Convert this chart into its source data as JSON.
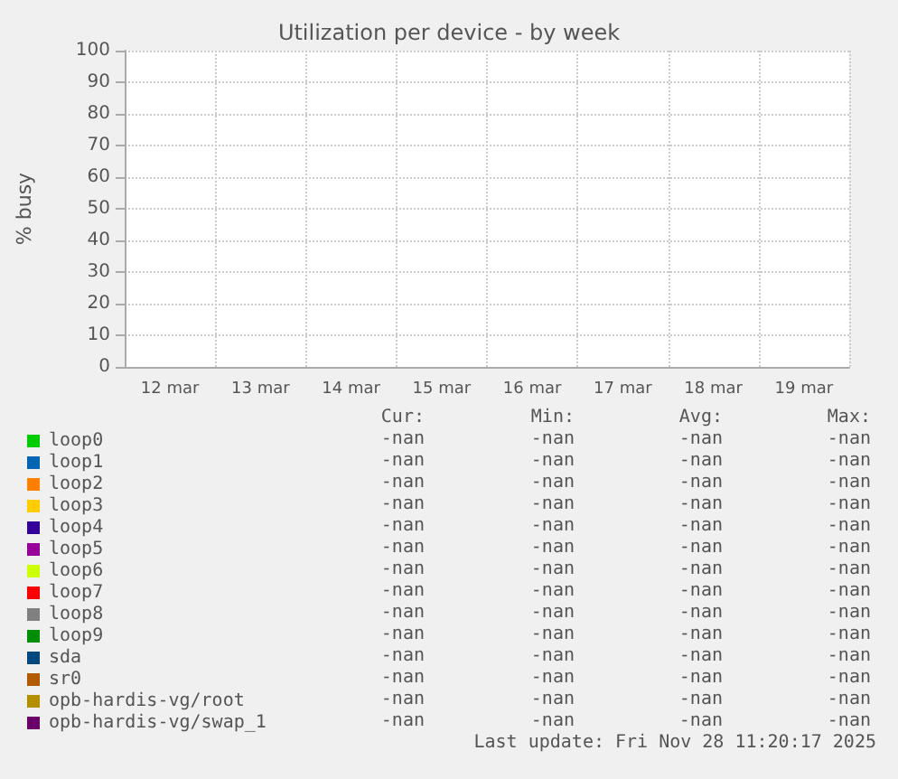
{
  "chart_data": {
    "type": "line",
    "title": "Utilization per device - by week",
    "ylabel": "% busy",
    "categories": [
      "12 mar",
      "13 mar",
      "14 mar",
      "15 mar",
      "16 mar",
      "17 mar",
      "18 mar",
      "19 mar"
    ],
    "ylim": [
      0,
      100
    ],
    "yticks": [
      0,
      10,
      20,
      30,
      40,
      50,
      60,
      70,
      80,
      90,
      100
    ],
    "grid": true,
    "legend": "bottom",
    "series": [
      {
        "name": "loop0",
        "color": "#00cc00",
        "values": [
          null,
          null,
          null,
          null,
          null,
          null,
          null,
          null
        ]
      },
      {
        "name": "loop1",
        "color": "#0066b3",
        "values": [
          null,
          null,
          null,
          null,
          null,
          null,
          null,
          null
        ]
      },
      {
        "name": "loop2",
        "color": "#ff8000",
        "values": [
          null,
          null,
          null,
          null,
          null,
          null,
          null,
          null
        ]
      },
      {
        "name": "loop3",
        "color": "#ffcc00",
        "values": [
          null,
          null,
          null,
          null,
          null,
          null,
          null,
          null
        ]
      },
      {
        "name": "loop4",
        "color": "#330099",
        "values": [
          null,
          null,
          null,
          null,
          null,
          null,
          null,
          null
        ]
      },
      {
        "name": "loop5",
        "color": "#990099",
        "values": [
          null,
          null,
          null,
          null,
          null,
          null,
          null,
          null
        ]
      },
      {
        "name": "loop6",
        "color": "#ccff00",
        "values": [
          null,
          null,
          null,
          null,
          null,
          null,
          null,
          null
        ]
      },
      {
        "name": "loop7",
        "color": "#ff0000",
        "values": [
          null,
          null,
          null,
          null,
          null,
          null,
          null,
          null
        ]
      },
      {
        "name": "loop8",
        "color": "#808080",
        "values": [
          null,
          null,
          null,
          null,
          null,
          null,
          null,
          null
        ]
      },
      {
        "name": "loop9",
        "color": "#008f00",
        "values": [
          null,
          null,
          null,
          null,
          null,
          null,
          null,
          null
        ]
      },
      {
        "name": "sda",
        "color": "#00487d",
        "values": [
          null,
          null,
          null,
          null,
          null,
          null,
          null,
          null
        ]
      },
      {
        "name": "sr0",
        "color": "#b35a00",
        "values": [
          null,
          null,
          null,
          null,
          null,
          null,
          null,
          null
        ]
      },
      {
        "name": "opb-hardis-vg/root",
        "color": "#b38f00",
        "values": [
          null,
          null,
          null,
          null,
          null,
          null,
          null,
          null
        ]
      },
      {
        "name": "opb-hardis-vg/swap_1",
        "color": "#6b006b",
        "values": [
          null,
          null,
          null,
          null,
          null,
          null,
          null,
          null
        ]
      }
    ],
    "annotations": [
      "Cur:",
      "Min:",
      "Avg:",
      "Max:",
      "-nan",
      "-nan",
      "-nan",
      "-nan",
      "-nan",
      "-nan",
      "-nan",
      "-nan",
      "-nan",
      "-nan",
      "-nan",
      "-nan",
      "-nan",
      "-nan",
      "-nan",
      "-nan",
      "-nan",
      "-nan",
      "-nan",
      "-nan",
      "-nan",
      "-nan",
      "-nan",
      "-nan",
      "-nan",
      "-nan",
      "-nan",
      "-nan",
      "-nan",
      "-nan",
      "-nan",
      "-nan",
      "-nan",
      "-nan",
      "-nan",
      "-nan",
      "-nan",
      "-nan",
      "-nan",
      "-nan",
      "-nan",
      "-nan",
      "-nan",
      "-nan",
      "-nan",
      "-nan",
      "-nan",
      "-nan",
      "-nan",
      "-nan",
      "-nan",
      "-nan",
      "-nan",
      "-nan",
      "-nan",
      "-nan",
      "Last update: Fri Nov 28 11:20:17 2025"
    ]
  }
}
